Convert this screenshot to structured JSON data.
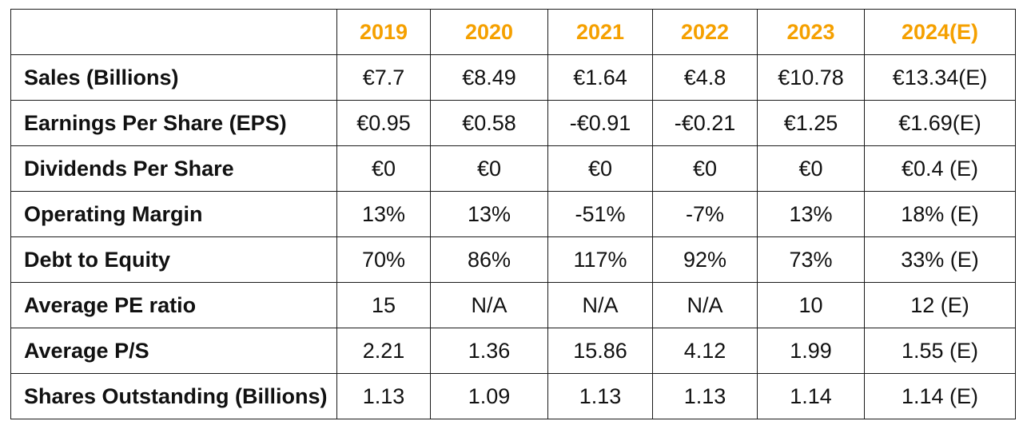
{
  "table": {
    "corner": "",
    "columns": [
      "2019",
      "2020",
      "2021",
      "2022",
      "2023",
      "2024(E)"
    ],
    "rows": [
      {
        "label": "Sales (Billions)",
        "values": [
          "€7.7",
          "€8.49",
          "€1.64",
          "€4.8",
          "€10.78",
          "€13.34(E)"
        ]
      },
      {
        "label": "Earnings Per Share (EPS)",
        "values": [
          "€0.95",
          "€0.58",
          "-€0.91",
          "-€0.21",
          "€1.25",
          "€1.69(E)"
        ]
      },
      {
        "label": "Dividends Per Share",
        "values": [
          "€0",
          "€0",
          "€0",
          "€0",
          "€0",
          "€0.4 (E)"
        ]
      },
      {
        "label": "Operating Margin",
        "values": [
          "13%",
          "13%",
          "-51%",
          "-7%",
          "13%",
          "18% (E)"
        ]
      },
      {
        "label": "Debt to Equity",
        "values": [
          "70%",
          "86%",
          "117%",
          "92%",
          "73%",
          "33% (E)"
        ]
      },
      {
        "label": "Average PE ratio",
        "values": [
          "15",
          "N/A",
          "N/A",
          "N/A",
          "10",
          "12 (E)"
        ]
      },
      {
        "label": "Average P/S",
        "values": [
          "2.21",
          "1.36",
          "15.86",
          "4.12",
          "1.99",
          "1.55 (E)"
        ]
      },
      {
        "label": "Shares Outstanding (Billions)",
        "values": [
          "1.13",
          "1.09",
          "1.13",
          "1.13",
          "1.14",
          "1.14 (E)"
        ]
      }
    ]
  },
  "colors": {
    "header_text": "#f5a000",
    "body_text": "#111111",
    "border": "#1a1a1a",
    "background": "#ffffff"
  }
}
